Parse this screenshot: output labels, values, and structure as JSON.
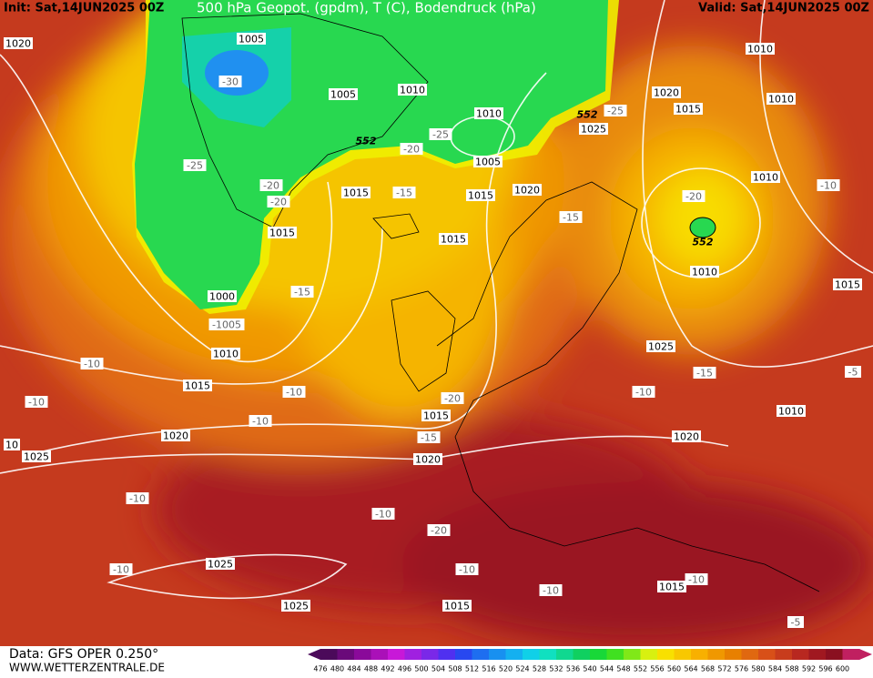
{
  "header": {
    "init": "Init: Sat,14JUN2025 00Z",
    "title": "500 hPa Geopot. (gpdm), T (C), Bodendruck (hPa)",
    "valid": "Valid: Sat,14JUN2025 00Z"
  },
  "footer": {
    "source": "Data: GFS OPER 0.250°",
    "site": "WWW.WETTERZENTRALE.DE"
  },
  "scale": {
    "labels": [
      476,
      480,
      484,
      488,
      492,
      496,
      500,
      504,
      508,
      512,
      516,
      520,
      524,
      528,
      532,
      536,
      540,
      544,
      548,
      552,
      556,
      560,
      564,
      568,
      572,
      576,
      580,
      584,
      588,
      592,
      596,
      600
    ],
    "colors": [
      "#4b0a5a",
      "#6a0a7a",
      "#8a0a9a",
      "#aa10b8",
      "#c818d8",
      "#a020e0",
      "#7a28e8",
      "#5030f0",
      "#2848f0",
      "#1e6ef0",
      "#1890f0",
      "#14b0f0",
      "#10d0e8",
      "#10e0c0",
      "#10d890",
      "#10d060",
      "#18d838",
      "#40e020",
      "#80e818",
      "#d8f010",
      "#f8e000",
      "#f8c800",
      "#f8b000",
      "#f09800",
      "#e88000",
      "#e06810",
      "#d85018",
      "#c83c1c",
      "#b82820",
      "#a01820",
      "#8a1020",
      "#c02060"
    ]
  },
  "map_labels": [
    "1020",
    "1005",
    "-30",
    "1005",
    "1010",
    "552",
    "-25",
    "1010",
    "1025",
    "552",
    "-20",
    "-25",
    "1005",
    "-25",
    "-20",
    "-20",
    "1015",
    "-15",
    "1015",
    "1020",
    "-15",
    "1015",
    "1015",
    "-15",
    "1000",
    "-1005",
    "1010",
    "-10",
    "1015",
    "-10",
    "-10",
    "-10",
    "1020",
    "1015",
    "-20",
    "-15",
    "1020",
    "1025",
    "10",
    "-10",
    "-10",
    "-20",
    "1025",
    "-10",
    "-10",
    "-10",
    "1015",
    "-10",
    "1015",
    "1025",
    "-5",
    "1010",
    "1010",
    "1020",
    "1015",
    "-20",
    "552",
    "1010",
    "-10",
    "1010",
    "1015",
    "1025",
    "-15",
    "-10",
    "1010",
    "1020",
    "-5"
  ]
}
